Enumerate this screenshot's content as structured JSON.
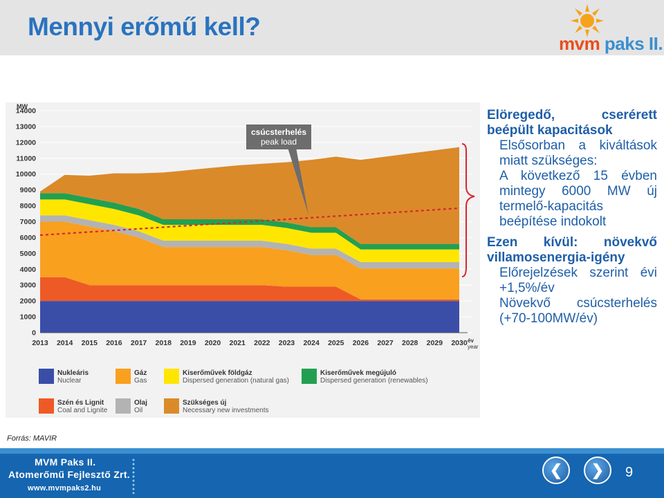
{
  "slide": {
    "title": "Mennyi erőmű kell?",
    "source": "Forrás: MAVIR",
    "page_number": "9"
  },
  "logo": {
    "mvm": "mvm",
    "rest": " paks II."
  },
  "footer": {
    "line1": "MVM Paks II.",
    "line2": "Atomerőmű Fejlesztő Zrt.",
    "line3": "www.mvmpaks2.hu"
  },
  "right_panel": {
    "h1": "Elöregedő, cserérett beépült kapacitások",
    "p1": "Elsősorban a kiváltások miatt szükséges:",
    "p2": "A következő 15 évben mintegy 6000 MW új termelő-kapacitás beépítése indokolt",
    "h2": "Ezen kívül: növekvő villamosenergia-igény",
    "p3": "Előrejelzések szerint évi +1,5%/év",
    "p4": "Növekvő csúcsterhelés (+70-100MW/év)"
  },
  "colors": {
    "nuclear": "#3a4ea8",
    "coal": "#ee5a26",
    "gas": "#f9a01f",
    "oil": "#b3b3b3",
    "gas_dispersed": "#ffe600",
    "renewables": "#22a050",
    "new_needed": "#db8a2a",
    "peak_line": "#d7262d",
    "callout": "#6d6d6d",
    "text_blue": "#1f5fa8",
    "title_blue": "#2a73c0",
    "footer_blue": "#1565b0"
  },
  "chart_data": {
    "type": "area",
    "stacked": true,
    "x": [
      "2013",
      "2014",
      "2015",
      "2016",
      "2017",
      "2018",
      "2019",
      "2020",
      "2021",
      "2022",
      "2023",
      "2024",
      "2025",
      "2026",
      "2027",
      "2028",
      "2029",
      "2030"
    ],
    "ylabel": "MW",
    "xlabel_hu": "év",
    "xlabel_en": "year",
    "ylim": [
      0,
      14000
    ],
    "yticks": [
      "0",
      "1000",
      "2000",
      "3000",
      "4000",
      "5000",
      "6000",
      "7000",
      "8000",
      "9000",
      "10000",
      "11000",
      "12000",
      "13000",
      "14000"
    ],
    "grid": true,
    "series": [
      {
        "key": "nuclear",
        "name": "Nukleáris",
        "name_en": "Nuclear",
        "values": [
          2000,
          2000,
          2000,
          2000,
          2000,
          2000,
          2000,
          2000,
          2000,
          2000,
          2000,
          2000,
          2000,
          2000,
          2000,
          2000,
          2000,
          2000
        ]
      },
      {
        "key": "coal",
        "name": "Szén és Lignit",
        "name_en": "Coal and Lignite",
        "values": [
          1500,
          1500,
          1000,
          1000,
          1000,
          1000,
          1000,
          1000,
          1000,
          1000,
          900,
          900,
          900,
          100,
          100,
          100,
          100,
          100
        ]
      },
      {
        "key": "gas",
        "name": "Gáz",
        "name_en": "Gas",
        "values": [
          3500,
          3500,
          3700,
          3400,
          3000,
          2400,
          2400,
          2400,
          2400,
          2400,
          2300,
          2000,
          2000,
          1950,
          1950,
          1950,
          1950,
          1950
        ]
      },
      {
        "key": "oil",
        "name": "Olaj",
        "name_en": "Oil",
        "values": [
          400,
          400,
          400,
          400,
          400,
          400,
          400,
          400,
          400,
          400,
          400,
          400,
          400,
          400,
          400,
          400,
          400,
          400
        ]
      },
      {
        "key": "gas_dispersed",
        "name": "Kiserőművek földgáz",
        "name_en": "Dispersed generation (natural gas)",
        "values": [
          1000,
          1000,
          1000,
          1000,
          1000,
          1000,
          1000,
          1000,
          1000,
          1000,
          1000,
          1000,
          1000,
          800,
          800,
          800,
          800,
          800
        ]
      },
      {
        "key": "renewables",
        "name": "Kiserőművek megújuló",
        "name_en": "Dispersed generation (renewables)",
        "values": [
          400,
          400,
          400,
          400,
          400,
          350,
          350,
          350,
          350,
          350,
          350,
          350,
          350,
          350,
          350,
          350,
          350,
          350
        ]
      },
      {
        "key": "new_needed",
        "name": "Szükséges új",
        "name_en": "Necessary new investments",
        "values": [
          100,
          1150,
          1400,
          1850,
          2250,
          2950,
          3100,
          3250,
          3400,
          3500,
          3800,
          4250,
          4450,
          5300,
          5500,
          5700,
          5900,
          6100
        ]
      }
    ],
    "peak_load": {
      "values": [
        6150,
        6250,
        6350,
        6450,
        6550,
        6650,
        6750,
        6850,
        6950,
        7050,
        7150,
        7250,
        7350,
        7450,
        7550,
        7650,
        7750,
        7850
      ]
    },
    "annotation": {
      "line1": "csúcsterhelés",
      "line2": "peak load",
      "x": "2024",
      "y": 7250
    }
  }
}
